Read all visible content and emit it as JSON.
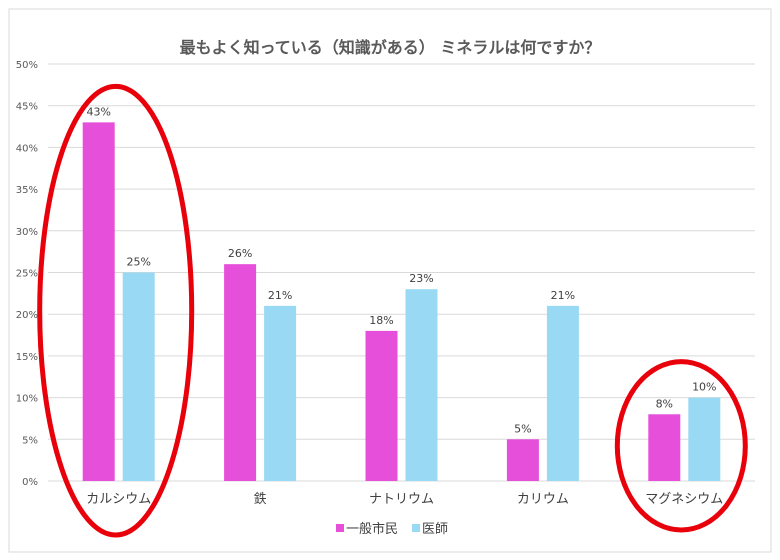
{
  "chart_data": {
    "type": "bar",
    "title": "最もよく知っている（知識がある） ミネラルは何ですか？",
    "categories": [
      "カルシウム",
      "鉄",
      "ナトリウム",
      "カリウム",
      "マグネシウム"
    ],
    "series": [
      {
        "name": "一般市民",
        "values": [
          43,
          26,
          18,
          5,
          8
        ],
        "color": "#E64FD9"
      },
      {
        "name": "医師",
        "values": [
          25,
          21,
          23,
          21,
          10
        ],
        "color": "#99D9F3"
      }
    ],
    "ylim": [
      0,
      50
    ],
    "yticks": [
      "0%",
      "5%",
      "10%",
      "15%",
      "20%",
      "25%",
      "30%",
      "35%",
      "40%",
      "45%",
      "50%"
    ],
    "value_suffix": "%",
    "grid": true,
    "legend": "bottom",
    "highlighted_categories": [
      "カルシウム",
      "マグネシウム"
    ],
    "highlight_color": "#E8000B"
  }
}
